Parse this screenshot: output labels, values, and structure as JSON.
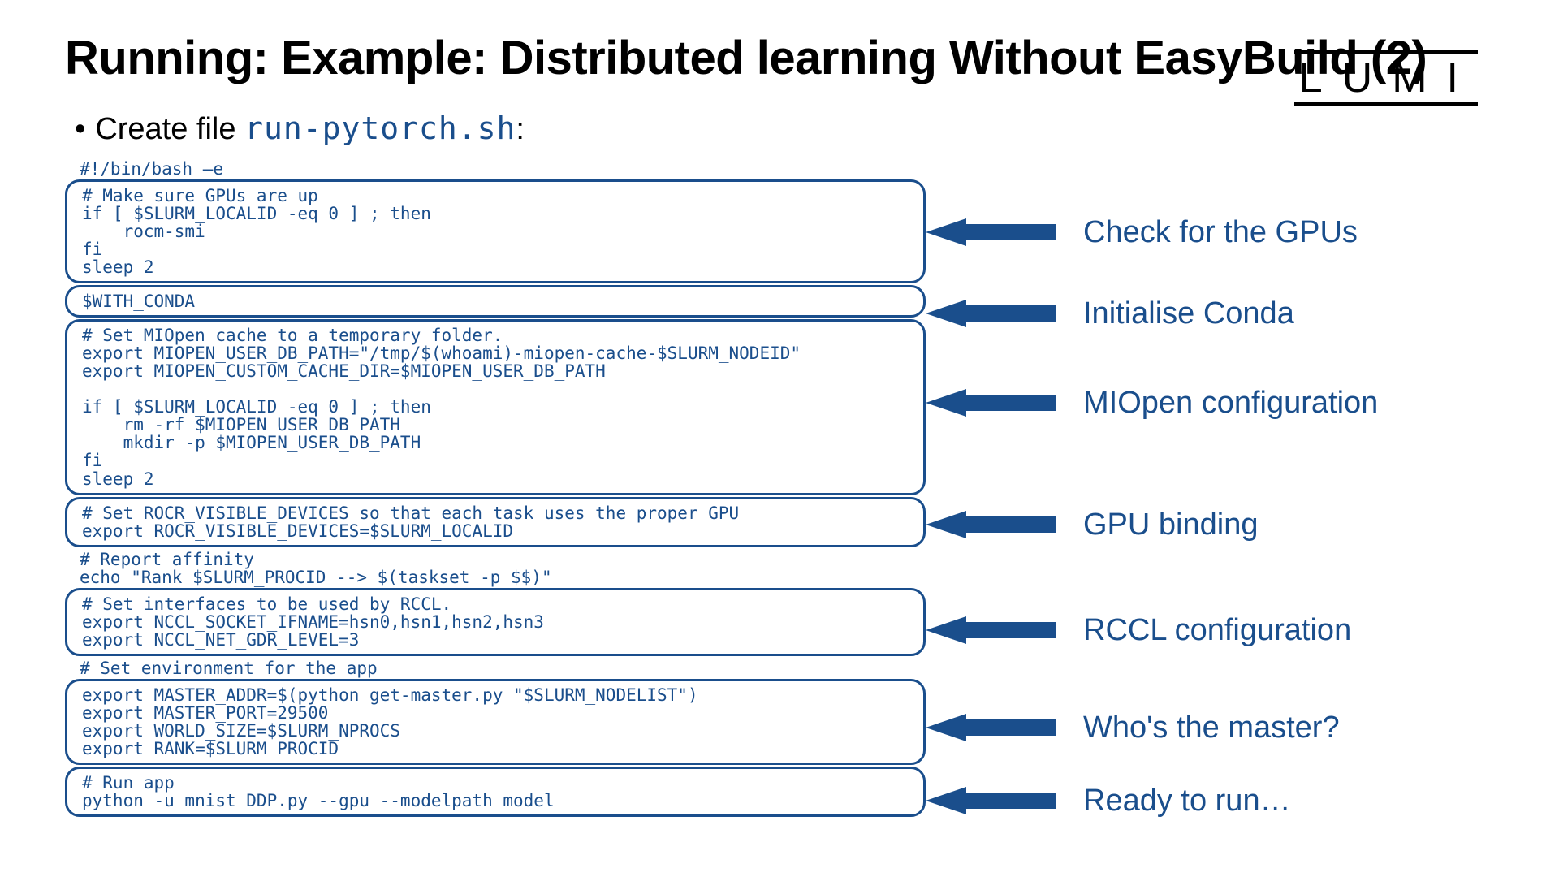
{
  "title": "Running: Example: Distributed learning Without EasyBuild (2)",
  "logo": "LUMI",
  "bullet": {
    "lead": "Create file ",
    "filename": "run-pytorch.sh",
    "tail": ":"
  },
  "code": {
    "shebang": "#!/bin/bash –e",
    "block1": "# Make sure GPUs are up\nif [ $SLURM_LOCALID -eq 0 ] ; then\n    rocm-smi\nfi\nsleep 2",
    "block2": "$WITH_CONDA",
    "block3": "# Set MIOpen cache to a temporary folder.\nexport MIOPEN_USER_DB_PATH=\"/tmp/$(whoami)-miopen-cache-$SLURM_NODEID\"\nexport MIOPEN_CUSTOM_CACHE_DIR=$MIOPEN_USER_DB_PATH\n\nif [ $SLURM_LOCALID -eq 0 ] ; then\n    rm -rf $MIOPEN_USER_DB_PATH\n    mkdir -p $MIOPEN_USER_DB_PATH\nfi\nsleep 2",
    "block4": "# Set ROCR_VISIBLE_DEVICES so that each task uses the proper GPU\nexport ROCR_VISIBLE_DEVICES=$SLURM_LOCALID",
    "plain5": "# Report affinity\necho \"Rank $SLURM_PROCID --> $(taskset -p $$)\"",
    "block6": "# Set interfaces to be used by RCCL.\nexport NCCL_SOCKET_IFNAME=hsn0,hsn1,hsn2,hsn3\nexport NCCL_NET_GDR_LEVEL=3",
    "plain7": "# Set environment for the app",
    "block7": "export MASTER_ADDR=$(python get-master.py \"$SLURM_NODELIST\")\nexport MASTER_PORT=29500\nexport WORLD_SIZE=$SLURM_NPROCS\nexport RANK=$SLURM_PROCID",
    "block8": "# Run app\npython -u mnist_DDP.py --gpu --modelpath model"
  },
  "annotations": {
    "a1": "Check for the GPUs",
    "a2": "Initialise Conda",
    "a3": "MIOpen configuration",
    "a4": "GPU binding",
    "a6": "RCCL configuration",
    "a7": "Who's the master?",
    "a8": "Ready to run…"
  },
  "layout": {
    "arrow_color": "#1a4e8c",
    "anno_positions": {
      "a1": 70,
      "a2": 170,
      "a3": 280,
      "a4": 430,
      "a6": 560,
      "a7": 680,
      "a8": 770
    }
  }
}
